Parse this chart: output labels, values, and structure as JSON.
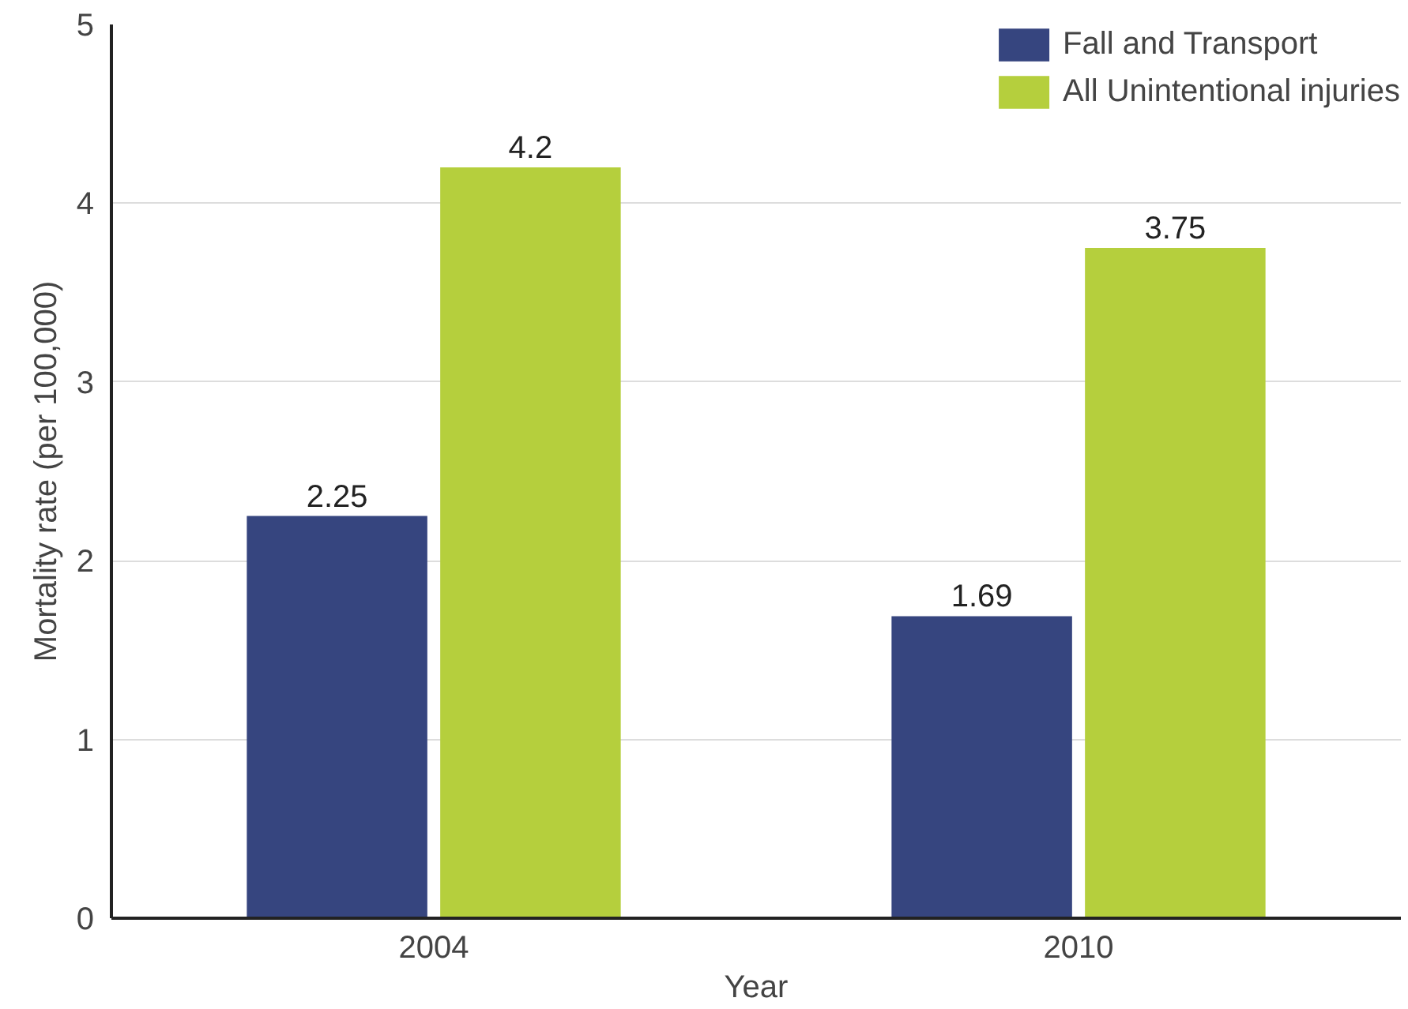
{
  "chart_data": {
    "type": "bar",
    "xlabel": "Year",
    "ylabel": "Mortality rate (per 100,000)",
    "categories": [
      "2004",
      "2010"
    ],
    "series": [
      {
        "name": "Fall and Transport",
        "color": "#36457f",
        "values": [
          2.25,
          1.69
        ]
      },
      {
        "name": "All Unintentional injuries",
        "color": "#b5cf3d",
        "values": [
          4.2,
          3.75
        ]
      }
    ],
    "ylim": [
      0,
      5
    ],
    "yticks": [
      0,
      1,
      2,
      3,
      4,
      5
    ],
    "grid": "y",
    "legend": "top right",
    "data_labels": true
  }
}
